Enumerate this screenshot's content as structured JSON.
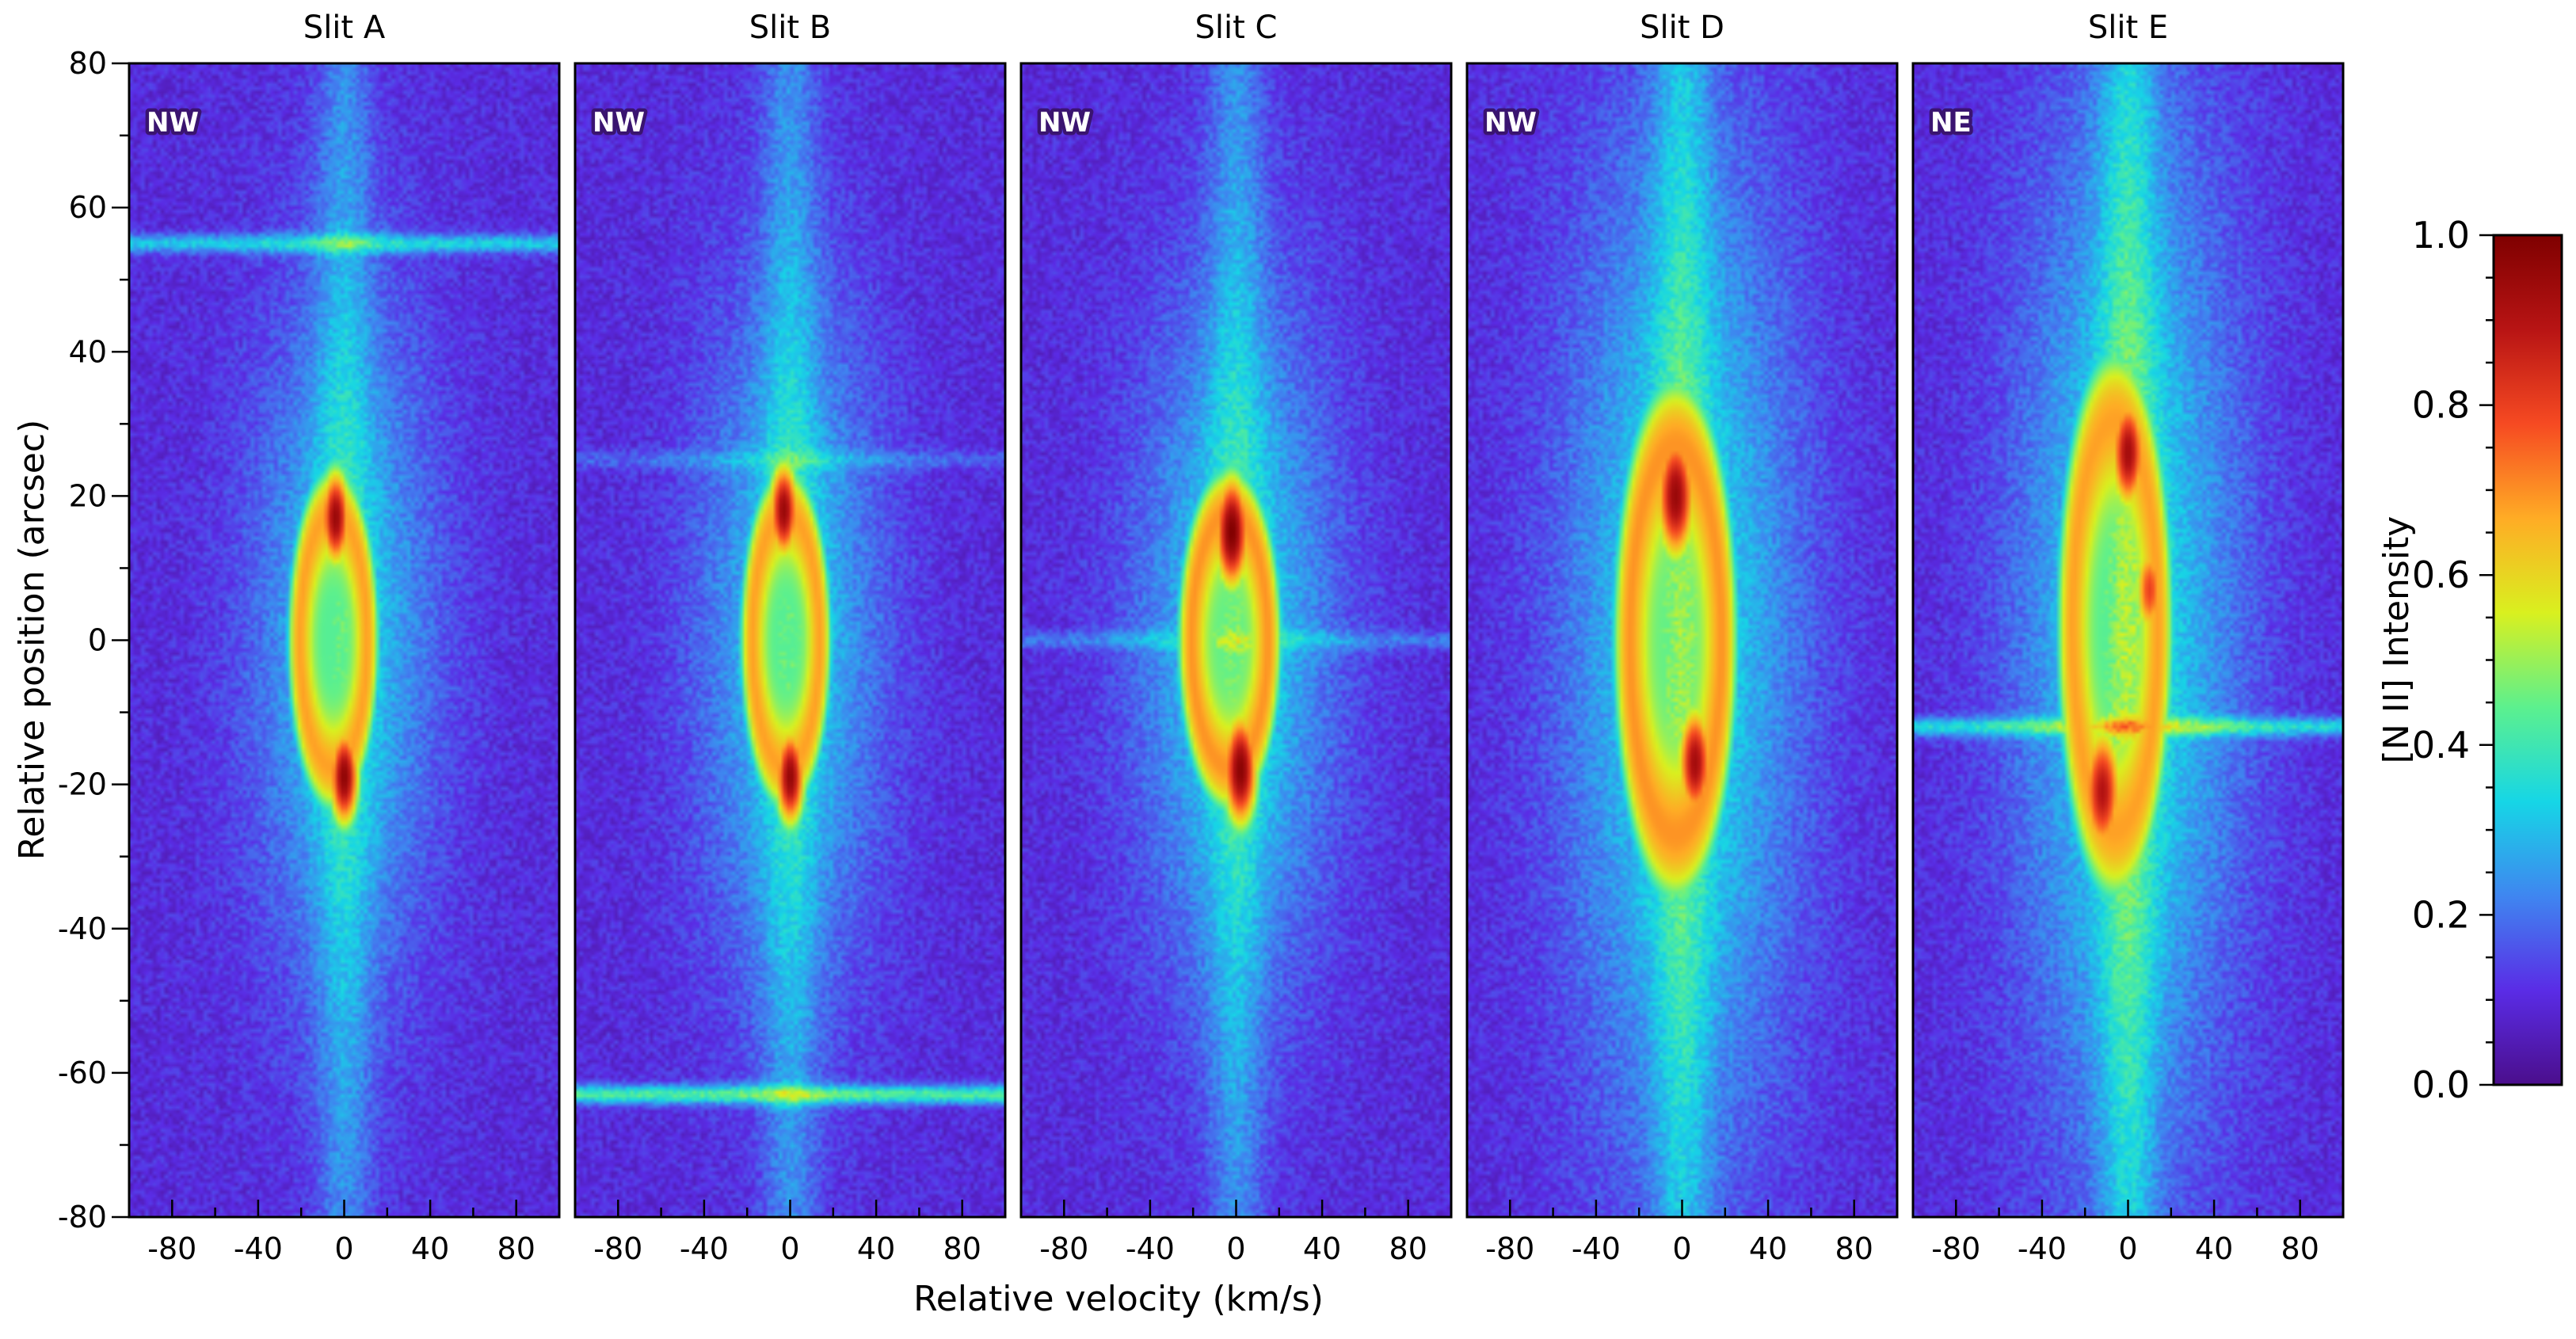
{
  "chart_data": {
    "type": "heatmap",
    "title": "",
    "xlabel": "Relative velocity (km/s)",
    "ylabel": "Relative position (arcsec)",
    "xlim": [
      -100,
      100
    ],
    "ylim": [
      -80,
      80
    ],
    "x_ticks": [
      -80,
      -40,
      0,
      40,
      80
    ],
    "x_tick_labels": [
      "-80",
      "-40",
      "0",
      "40",
      "80"
    ],
    "y_ticks": [
      -80,
      -60,
      -40,
      -20,
      0,
      20,
      40,
      60,
      80
    ],
    "y_tick_labels": [
      "-80",
      "-60",
      "-40",
      "-20",
      "0",
      "20",
      "40",
      "60",
      "80"
    ],
    "colormap": [
      "#4b0e8c",
      "#5a2ce6",
      "#3f86f0",
      "#16d6e6",
      "#5cf08e",
      "#d9f01f",
      "#ffac25",
      "#f64a22",
      "#b81414",
      "#7f0000"
    ],
    "colorbar": {
      "label": "[N II] Intensity",
      "range": [
        0.0,
        1.0
      ],
      "ticks": [
        0.0,
        0.2,
        0.4,
        0.6,
        0.8,
        1.0
      ],
      "tick_labels": [
        "0.0",
        "0.2",
        "0.4",
        "0.6",
        "0.8",
        "1.0"
      ]
    },
    "panels": [
      {
        "title": "Slit A",
        "tag": "NW",
        "halo": {
          "v": 0,
          "y": 0,
          "sv": 30,
          "sy": 34,
          "peak": 0.22
        },
        "ellipse": {
          "v0": -5,
          "y0": 0,
          "a": 22,
          "b": 25,
          "base": 0.58
        },
        "knots": [
          {
            "v": -4,
            "y": 17,
            "s": 6,
            "i": 0.95
          },
          {
            "v": 0,
            "y": -19,
            "s": 6,
            "i": 0.97
          }
        ],
        "streaks": [
          {
            "y": 55,
            "i": 0.22
          }
        ],
        "vertical_band": 0.12
      },
      {
        "title": "Slit B",
        "tag": "NW",
        "halo": {
          "v": 0,
          "y": 0,
          "sv": 30,
          "sy": 34,
          "peak": 0.22
        },
        "ellipse": {
          "v0": -2,
          "y0": 0,
          "a": 22,
          "b": 25,
          "base": 0.58
        },
        "knots": [
          {
            "v": -3,
            "y": 18,
            "s": 6,
            "i": 0.95
          },
          {
            "v": 0,
            "y": -19,
            "s": 6,
            "i": 0.96
          }
        ],
        "streaks": [
          {
            "y": -63,
            "i": 0.32
          },
          {
            "y": 25,
            "i": 0.08
          }
        ],
        "vertical_band": 0.12
      },
      {
        "title": "Slit C",
        "tag": "NW",
        "halo": {
          "v": 0,
          "y": 0,
          "sv": 32,
          "sy": 34,
          "peak": 0.24
        },
        "ellipse": {
          "v0": -3,
          "y0": 0,
          "a": 25,
          "b": 25,
          "base": 0.6
        },
        "knots": [
          {
            "v": -2,
            "y": 15,
            "s": 7,
            "i": 1.0
          },
          {
            "v": 2,
            "y": -18,
            "s": 7,
            "i": 0.98
          }
        ],
        "streaks": [
          {
            "y": 0,
            "i": 0.1
          }
        ],
        "vertical_band": 0.12
      },
      {
        "title": "Slit D",
        "tag": "NW",
        "halo": {
          "v": 0,
          "y": 0,
          "sv": 38,
          "sy": 50,
          "peak": 0.26
        },
        "ellipse": {
          "v0": -3,
          "y0": 0,
          "a": 30,
          "b": 38,
          "base": 0.6
        },
        "knots": [
          {
            "v": -3,
            "y": 20,
            "s": 8,
            "i": 0.95
          },
          {
            "v": 6,
            "y": -17,
            "s": 7,
            "i": 0.93
          }
        ],
        "streaks": [],
        "vertical_band": 0.14
      },
      {
        "title": "Slit E",
        "tag": "NE",
        "halo": {
          "v": 0,
          "y": 2,
          "sv": 36,
          "sy": 52,
          "peak": 0.26
        },
        "ellipse": {
          "v0": -6,
          "y0": 2,
          "a": 28,
          "b": 40,
          "base": 0.58
        },
        "knots": [
          {
            "v": 0,
            "y": 26,
            "s": 7,
            "i": 0.93
          },
          {
            "v": -12,
            "y": -21,
            "s": 8,
            "i": 0.9
          },
          {
            "v": 10,
            "y": 7,
            "s": 6,
            "i": 0.8
          }
        ],
        "streaks": [
          {
            "y": -12,
            "i": 0.24
          }
        ],
        "vertical_band": 0.16
      }
    ]
  }
}
